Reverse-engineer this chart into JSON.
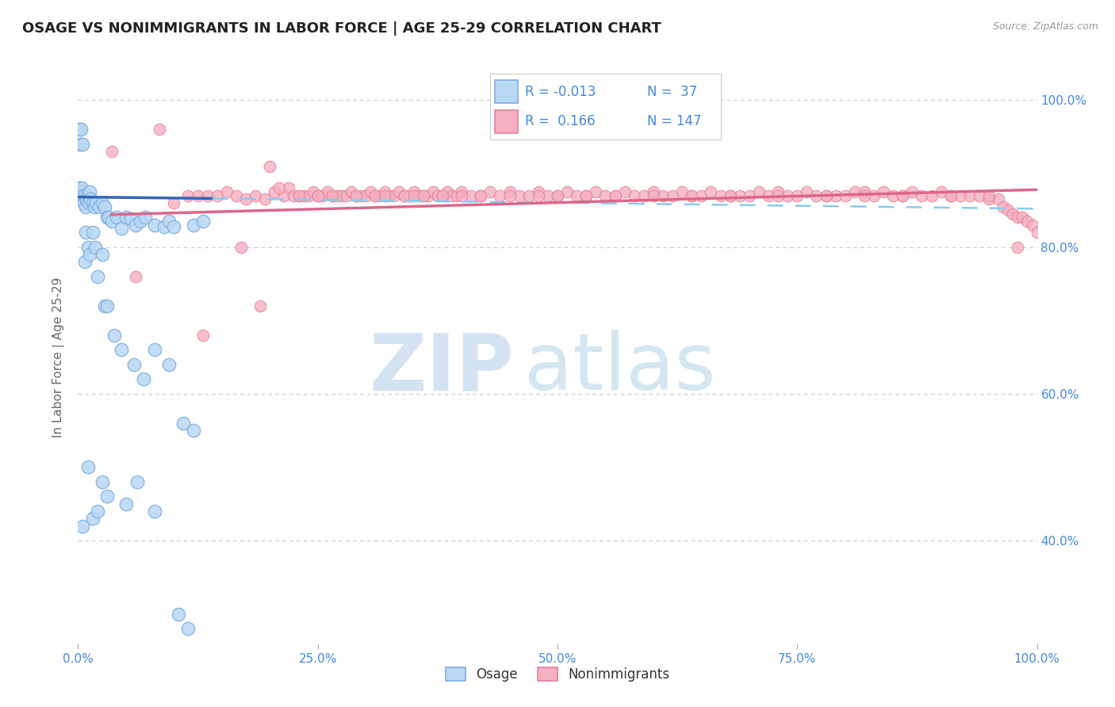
{
  "title": "OSAGE VS NONIMMIGRANTS IN LABOR FORCE | AGE 25-29 CORRELATION CHART",
  "source_text": "Source: ZipAtlas.com",
  "ylabel": "In Labor Force | Age 25-29",
  "background_color": "#ffffff",
  "grid_color": "#cccccc",
  "title_color": "#222222",
  "axis_label_color": "#666666",
  "tick_color": "#4488dd",
  "watermark_zip": "ZIP",
  "watermark_atlas": "atlas",
  "legend_R1": "-0.013",
  "legend_N1": "37",
  "legend_R2": "0.166",
  "legend_N2": "147",
  "osage_fill": "#b8d8f4",
  "osage_edge": "#80aee0",
  "nonimm_fill": "#f4b0c0",
  "nonimm_edge": "#e88098",
  "trendline_osage_solid": "#3366bb",
  "trendline_osage_dashed": "#88ccee",
  "trendline_nonimm": "#dd6688",
  "osage_points_x": [
    0.001,
    0.001,
    0.002,
    0.002,
    0.003,
    0.004,
    0.005,
    0.006,
    0.007,
    0.008,
    0.009,
    0.01,
    0.011,
    0.012,
    0.013,
    0.015,
    0.017,
    0.019,
    0.022,
    0.025,
    0.028,
    0.03,
    0.032,
    0.035,
    0.04,
    0.045,
    0.05,
    0.055,
    0.06,
    0.065,
    0.07,
    0.08,
    0.09,
    0.095,
    0.1,
    0.12,
    0.13
  ],
  "osage_points_y": [
    0.875,
    0.88,
    0.87,
    0.865,
    0.875,
    0.88,
    0.87,
    0.86,
    0.87,
    0.855,
    0.865,
    0.87,
    0.86,
    0.875,
    0.865,
    0.86,
    0.855,
    0.86,
    0.855,
    0.86,
    0.855,
    0.84,
    0.84,
    0.835,
    0.84,
    0.825,
    0.84,
    0.838,
    0.83,
    0.835,
    0.84,
    0.83,
    0.828,
    0.835,
    0.828,
    0.83,
    0.835
  ],
  "osage_outliers_x": [
    0.001,
    0.002,
    0.003,
    0.005,
    0.007,
    0.008,
    0.01,
    0.012,
    0.015,
    0.018,
    0.02,
    0.025,
    0.028,
    0.03,
    0.038,
    0.045,
    0.058,
    0.068,
    0.08,
    0.095,
    0.11,
    0.12
  ],
  "osage_outliers_y": [
    0.96,
    0.94,
    0.96,
    0.94,
    0.78,
    0.82,
    0.8,
    0.79,
    0.82,
    0.8,
    0.76,
    0.79,
    0.72,
    0.72,
    0.68,
    0.66,
    0.64,
    0.62,
    0.66,
    0.64,
    0.56,
    0.55
  ],
  "osage_low_x": [
    0.005,
    0.01,
    0.015,
    0.02,
    0.025,
    0.03,
    0.05,
    0.062,
    0.08,
    0.105,
    0.115
  ],
  "osage_low_y": [
    0.42,
    0.5,
    0.43,
    0.44,
    0.48,
    0.46,
    0.45,
    0.48,
    0.44,
    0.3,
    0.28
  ],
  "nonimm_points_x": [
    0.035,
    0.06,
    0.085,
    0.1,
    0.115,
    0.125,
    0.135,
    0.145,
    0.155,
    0.165,
    0.175,
    0.185,
    0.195,
    0.205,
    0.215,
    0.22,
    0.225,
    0.23,
    0.235,
    0.24,
    0.245,
    0.25,
    0.255,
    0.26,
    0.265,
    0.27,
    0.275,
    0.28,
    0.285,
    0.29,
    0.295,
    0.3,
    0.305,
    0.31,
    0.315,
    0.32,
    0.325,
    0.33,
    0.335,
    0.34,
    0.345,
    0.35,
    0.355,
    0.36,
    0.365,
    0.37,
    0.375,
    0.38,
    0.385,
    0.39,
    0.395,
    0.4,
    0.41,
    0.42,
    0.43,
    0.44,
    0.45,
    0.46,
    0.47,
    0.48,
    0.49,
    0.5,
    0.51,
    0.52,
    0.53,
    0.54,
    0.55,
    0.56,
    0.57,
    0.58,
    0.59,
    0.6,
    0.61,
    0.62,
    0.63,
    0.64,
    0.65,
    0.66,
    0.67,
    0.68,
    0.69,
    0.7,
    0.71,
    0.72,
    0.73,
    0.74,
    0.75,
    0.76,
    0.77,
    0.78,
    0.79,
    0.8,
    0.81,
    0.82,
    0.83,
    0.84,
    0.85,
    0.86,
    0.87,
    0.88,
    0.89,
    0.9,
    0.91,
    0.92,
    0.93,
    0.94,
    0.95,
    0.96,
    0.965,
    0.97,
    0.975,
    0.98,
    0.985,
    0.99,
    0.995,
    1.0
  ],
  "nonimm_points_y": [
    0.93,
    0.76,
    0.96,
    0.86,
    0.87,
    0.87,
    0.87,
    0.87,
    0.875,
    0.87,
    0.865,
    0.87,
    0.865,
    0.875,
    0.87,
    0.88,
    0.87,
    0.87,
    0.87,
    0.87,
    0.875,
    0.87,
    0.87,
    0.875,
    0.87,
    0.87,
    0.87,
    0.87,
    0.875,
    0.87,
    0.87,
    0.87,
    0.875,
    0.87,
    0.87,
    0.875,
    0.87,
    0.87,
    0.875,
    0.87,
    0.87,
    0.875,
    0.87,
    0.87,
    0.87,
    0.875,
    0.87,
    0.87,
    0.875,
    0.87,
    0.87,
    0.875,
    0.87,
    0.87,
    0.875,
    0.87,
    0.875,
    0.87,
    0.87,
    0.875,
    0.87,
    0.87,
    0.875,
    0.87,
    0.87,
    0.875,
    0.87,
    0.87,
    0.875,
    0.87,
    0.87,
    0.875,
    0.87,
    0.87,
    0.875,
    0.87,
    0.87,
    0.875,
    0.87,
    0.87,
    0.87,
    0.87,
    0.875,
    0.87,
    0.875,
    0.87,
    0.87,
    0.875,
    0.87,
    0.87,
    0.87,
    0.87,
    0.875,
    0.875,
    0.87,
    0.875,
    0.87,
    0.87,
    0.875,
    0.87,
    0.87,
    0.875,
    0.87,
    0.87,
    0.87,
    0.87,
    0.865,
    0.865,
    0.855,
    0.85,
    0.845,
    0.84,
    0.84,
    0.835,
    0.83,
    0.82
  ],
  "nonimm_scatter_x": [
    0.13,
    0.17,
    0.19,
    0.2,
    0.21,
    0.23,
    0.25,
    0.265,
    0.29,
    0.31,
    0.32,
    0.34,
    0.35,
    0.36,
    0.38,
    0.4,
    0.42,
    0.45,
    0.48,
    0.5,
    0.53,
    0.56,
    0.6,
    0.64,
    0.68,
    0.73,
    0.78,
    0.82,
    0.86,
    0.91,
    0.95,
    0.98
  ],
  "nonimm_scatter_y": [
    0.68,
    0.8,
    0.72,
    0.91,
    0.88,
    0.87,
    0.87,
    0.87,
    0.87,
    0.87,
    0.87,
    0.87,
    0.87,
    0.87,
    0.87,
    0.87,
    0.87,
    0.87,
    0.87,
    0.87,
    0.87,
    0.87,
    0.87,
    0.87,
    0.87,
    0.87,
    0.87,
    0.87,
    0.87,
    0.87,
    0.87,
    0.8
  ],
  "xlim": [
    0.0,
    1.0
  ],
  "ylim": [
    0.26,
    1.04
  ],
  "y_ticks": [
    0.4,
    0.6,
    0.8,
    1.0
  ],
  "x_ticks": [
    0.0,
    0.25,
    0.5,
    0.75,
    1.0
  ],
  "osage_trend_x0": 0.0,
  "osage_trend_y0": 0.868,
  "osage_trend_x1": 0.14,
  "osage_trend_y1": 0.866,
  "osage_trend_dashed_x1": 1.0,
  "osage_trend_dashed_y1": 0.852,
  "nonimm_trend_x0": 0.035,
  "nonimm_trend_y0": 0.844,
  "nonimm_trend_x1": 1.0,
  "nonimm_trend_y1": 0.878
}
